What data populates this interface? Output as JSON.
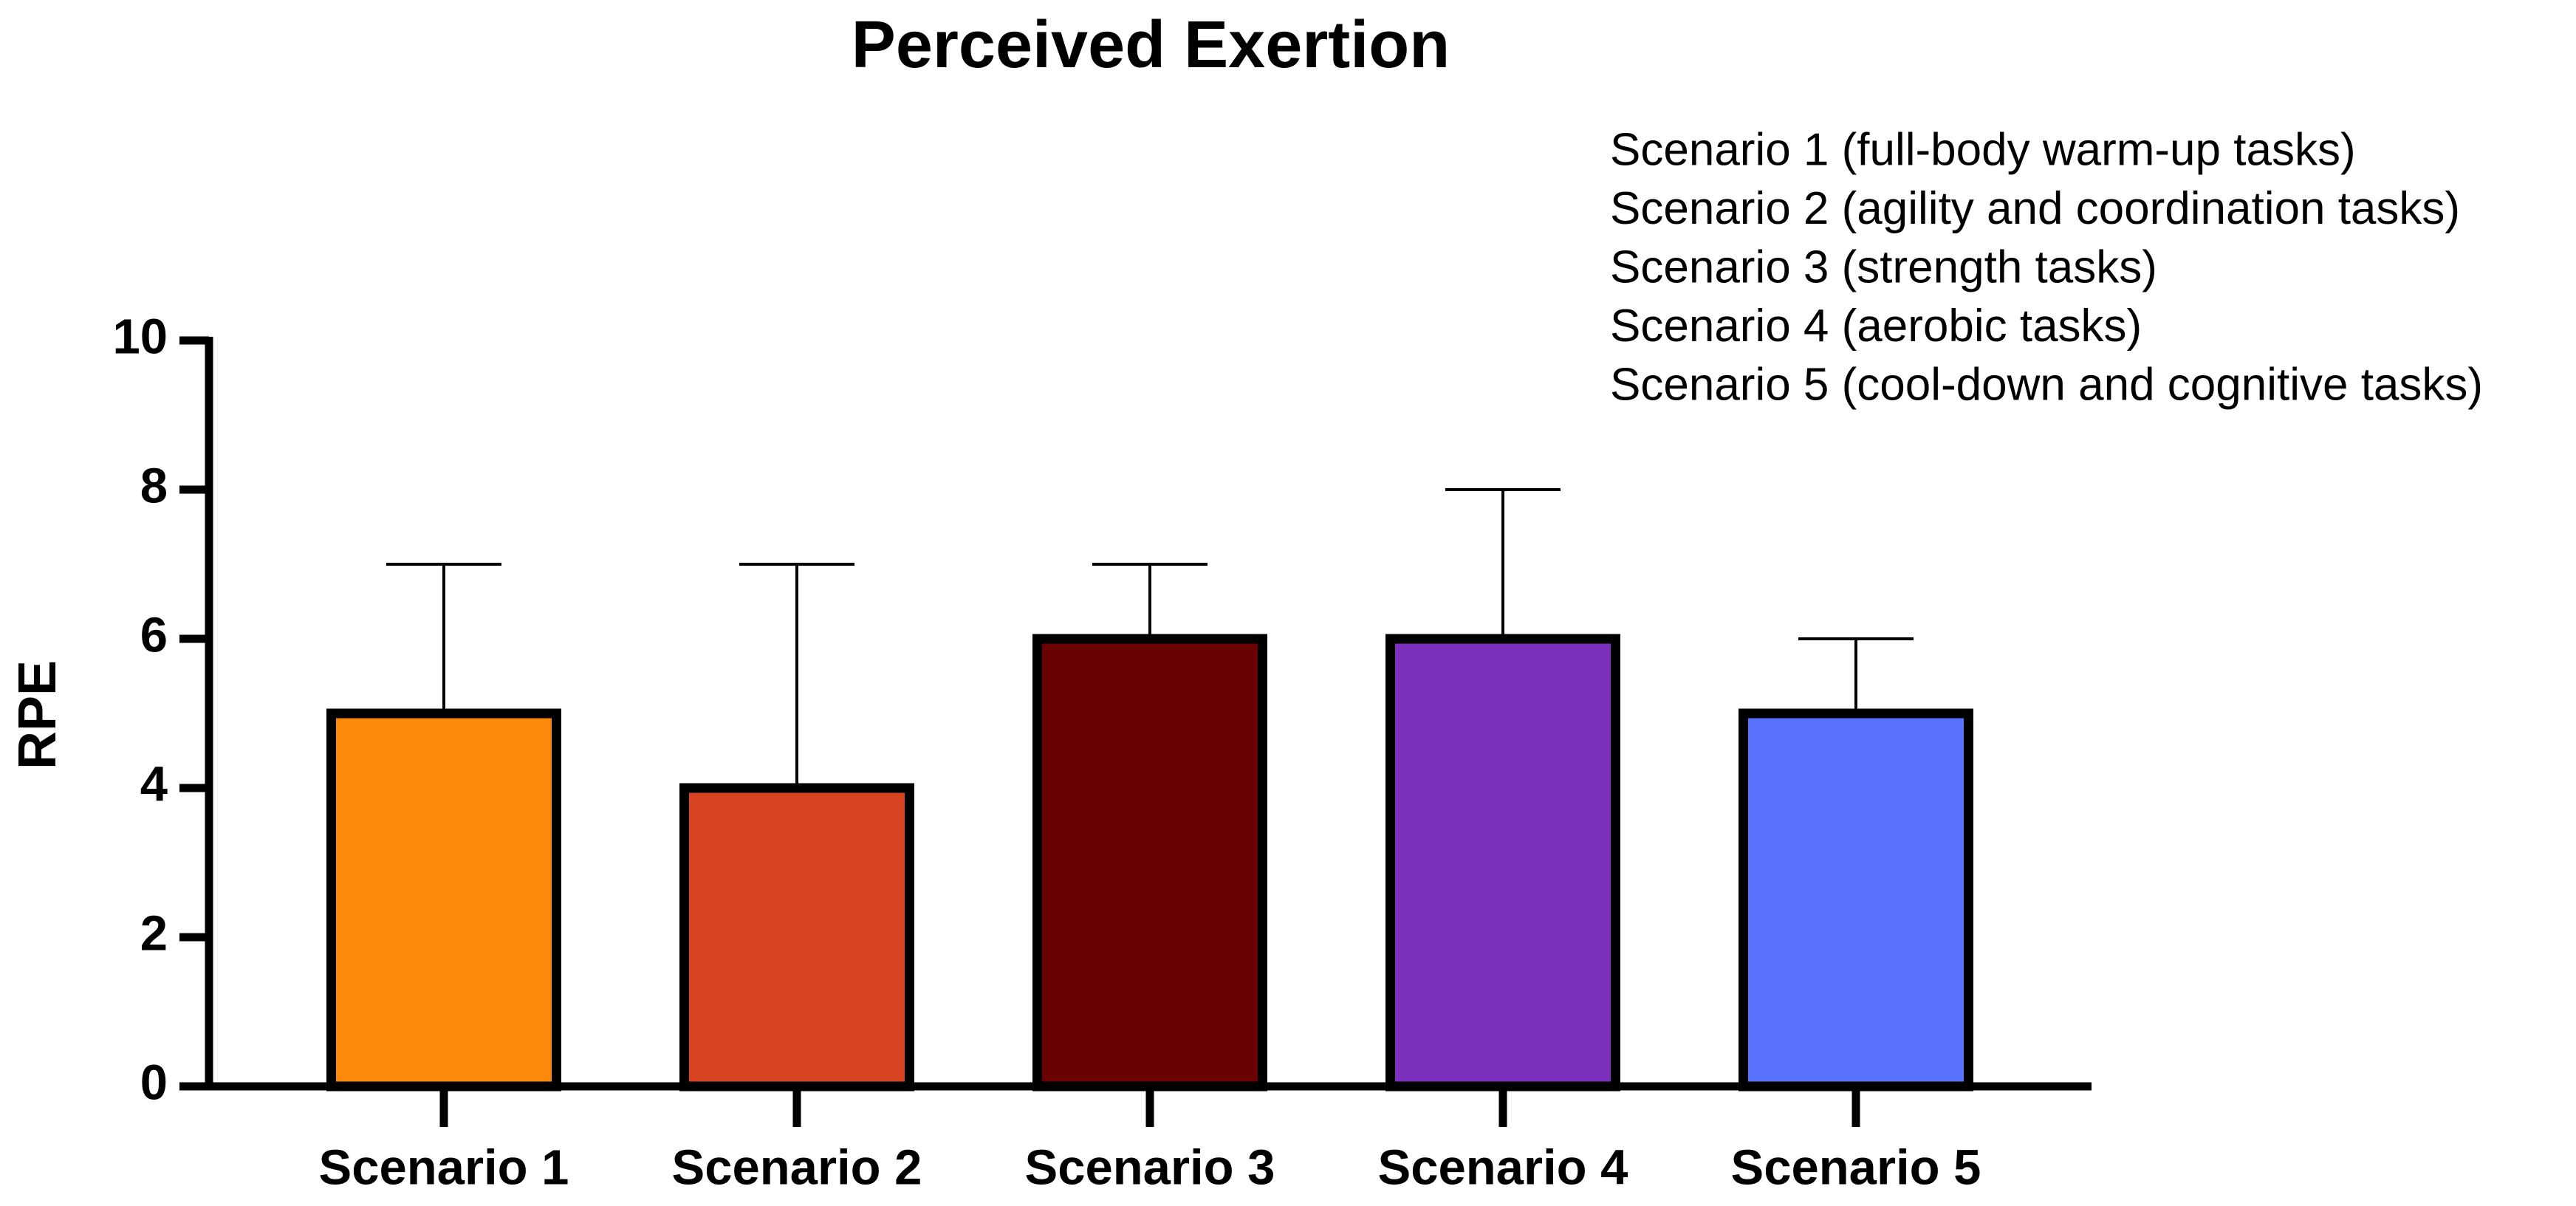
{
  "chart_data": {
    "type": "bar",
    "title": "Perceived Exertion",
    "y_label": "RPE",
    "categories": [
      "Scenario 1",
      "Scenario 2",
      "Scenario 3",
      "Scenario 4",
      "Scenario 5"
    ],
    "values": [
      5,
      4,
      6,
      6,
      5
    ],
    "errors": [
      2,
      3,
      1,
      2,
      1
    ],
    "colors": [
      "#fb8a0c",
      "#d84421",
      "#6a0204",
      "#7b31bd",
      "#5872fe"
    ],
    "ylim": [
      0,
      10
    ],
    "yticks": [
      0,
      2,
      4,
      6,
      8,
      10
    ],
    "grid": false,
    "annotations": [
      "Scenario 1 (full-body warm-up tasks)",
      "Scenario 2 (agility and coordination tasks)",
      "Scenario 3 (strength tasks)",
      "Scenario 4 (aerobic tasks)",
      "Scenario 5 (cool-down and cognitive tasks)"
    ]
  }
}
